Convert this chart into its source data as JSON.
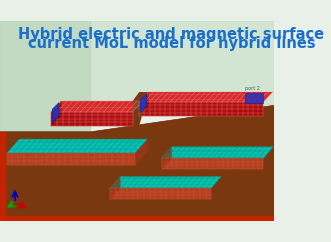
{
  "title_line1": "Hybrid electric and magnetic surface",
  "title_line2": "current MoL model for hybrid lines",
  "title_color": "#1a6ecc",
  "title_fontsize": 10.5,
  "bg_color": "#e8f0e8",
  "floor_color": "#7a3810",
  "wall_left_color": "#c8ddc8",
  "wall_back_color": "#d8e8d8",
  "red_color": "#cc1111",
  "cyan_color": "#00ddd0",
  "blue_accent": "#2233bb",
  "axis_x_color": "#cc0000",
  "axis_y_color": "#00aa00",
  "axis_z_color": "#0000cc"
}
